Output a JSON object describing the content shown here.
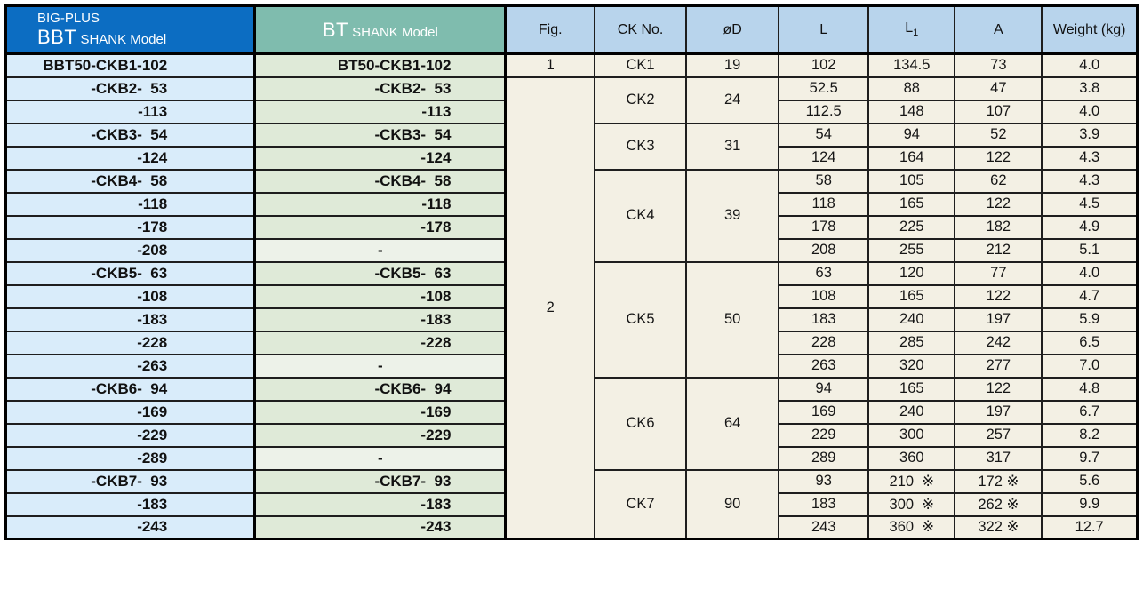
{
  "header": {
    "bbt": {
      "line1": "BIG-PLUS",
      "brand": "BBT",
      "suffix": " SHANK Model"
    },
    "bt": {
      "brand": "BT",
      "suffix": " SHANK Model"
    },
    "columns": {
      "fig": "Fig.",
      "ck": "CK No.",
      "d": "øD",
      "l": "L",
      "l1_base": "L",
      "l1_sub": "1",
      "a": "A",
      "weight": "Weight (kg)"
    }
  },
  "colors": {
    "bbt_header": "#0c6dc2",
    "bt_header": "#7fbcae",
    "column_header": "#b8d4ec",
    "bbt_row": "#d9ecfa",
    "bt_row": "#dfead8",
    "bt_empty_row": "#edf2e9",
    "data_cell": "#f3f0e4",
    "border": "#000000"
  },
  "table": {
    "rows": [
      {
        "bbt": "BBT50-CKB1-102",
        "bt": "BT50-CKB1-102",
        "fig": {
          "label": "1",
          "span": 1
        },
        "ck": {
          "label": "CK1",
          "span": 1
        },
        "d": {
          "label": "19",
          "span": 1
        },
        "l": "102",
        "l1": "134.5",
        "a": "73",
        "w": "4.0"
      },
      {
        "bbt": "-CKB2-  53",
        "bt": "-CKB2-  53",
        "fig": {
          "label": "2",
          "span": 20
        },
        "ck": {
          "label": "CK2",
          "span": 2
        },
        "d": {
          "label": "24",
          "span": 2
        },
        "l": "52.5",
        "l1": "88",
        "a": "47",
        "w": "3.8"
      },
      {
        "bbt": "-113",
        "bt": "-113",
        "l": "112.5",
        "l1": "148",
        "a": "107",
        "w": "4.0"
      },
      {
        "bbt": "-CKB3-  54",
        "bt": "-CKB3-  54",
        "ck": {
          "label": "CK3",
          "span": 2
        },
        "d": {
          "label": "31",
          "span": 2
        },
        "l": "54",
        "l1": "94",
        "a": "52",
        "w": "3.9"
      },
      {
        "bbt": "-124",
        "bt": "-124",
        "l": "124",
        "l1": "164",
        "a": "122",
        "w": "4.3"
      },
      {
        "bbt": "-CKB4-  58",
        "bt": "-CKB4-  58",
        "ck": {
          "label": "CK4",
          "span": 4
        },
        "d": {
          "label": "39",
          "span": 4
        },
        "l": "58",
        "l1": "105",
        "a": "62",
        "w": "4.3"
      },
      {
        "bbt": "-118",
        "bt": "-118",
        "l": "118",
        "l1": "165",
        "a": "122",
        "w": "4.5"
      },
      {
        "bbt": "-178",
        "bt": "-178",
        "l": "178",
        "l1": "225",
        "a": "182",
        "w": "4.9"
      },
      {
        "bbt": "-208",
        "bt": "-",
        "l": "208",
        "l1": "255",
        "a": "212",
        "w": "5.1"
      },
      {
        "bbt": "-CKB5-  63",
        "bt": "-CKB5-  63",
        "ck": {
          "label": "CK5",
          "span": 5
        },
        "d": {
          "label": "50",
          "span": 5
        },
        "l": "63",
        "l1": "120",
        "a": "77",
        "w": "4.0"
      },
      {
        "bbt": "-108",
        "bt": "-108",
        "l": "108",
        "l1": "165",
        "a": "122",
        "w": "4.7"
      },
      {
        "bbt": "-183",
        "bt": "-183",
        "l": "183",
        "l1": "240",
        "a": "197",
        "w": "5.9"
      },
      {
        "bbt": "-228",
        "bt": "-228",
        "l": "228",
        "l1": "285",
        "a": "242",
        "w": "6.5"
      },
      {
        "bbt": "-263",
        "bt": "-",
        "l": "263",
        "l1": "320",
        "a": "277",
        "w": "7.0"
      },
      {
        "bbt": "-CKB6-  94",
        "bt": "-CKB6-  94",
        "ck": {
          "label": "CK6",
          "span": 4
        },
        "d": {
          "label": "64",
          "span": 4
        },
        "l": "94",
        "l1": "165",
        "a": "122",
        "w": "4.8"
      },
      {
        "bbt": "-169",
        "bt": "-169",
        "l": "169",
        "l1": "240",
        "a": "197",
        "w": "6.7"
      },
      {
        "bbt": "-229",
        "bt": "-229",
        "l": "229",
        "l1": "300",
        "a": "257",
        "w": "8.2"
      },
      {
        "bbt": "-289",
        "bt": "-",
        "l": "289",
        "l1": "360",
        "a": "317",
        "w": "9.7"
      },
      {
        "bbt": "-CKB7-  93",
        "bt": "-CKB7-  93",
        "ck": {
          "label": "CK7",
          "span": 3
        },
        "d": {
          "label": "90",
          "span": 3
        },
        "l": "93",
        "l1": "210  ※",
        "a": "172 ※",
        "w": "5.6"
      },
      {
        "bbt": "-183",
        "bt": "-183",
        "l": "183",
        "l1": "300  ※",
        "a": "262 ※",
        "w": "9.9"
      },
      {
        "bbt": "-243",
        "bt": "-243",
        "l": "243",
        "l1": "360  ※",
        "a": "322 ※",
        "w": "12.7"
      }
    ]
  }
}
